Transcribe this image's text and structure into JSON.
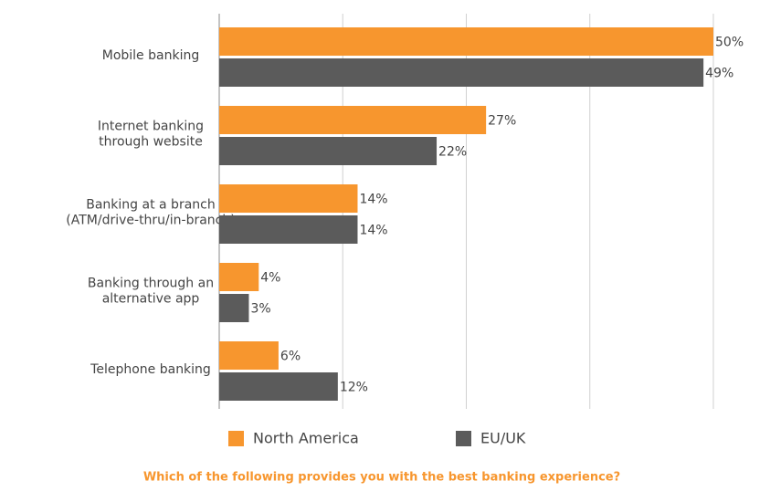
{
  "chart_data": {
    "type": "bar",
    "orientation": "horizontal",
    "title": "Which of the following provides you with the best banking experience?",
    "categories": [
      "Mobile banking",
      "Internet banking\nthrough website",
      "Banking at a branch\n(ATM/drive-thru/in-branch)",
      "Banking through an\nalternative app",
      "Telephone banking"
    ],
    "series": [
      {
        "name": "North America",
        "color": "#f7962e",
        "values": [
          50,
          27,
          14,
          4,
          6
        ],
        "value_labels": [
          "50%",
          "27%",
          "14%",
          "4%",
          "6%"
        ]
      },
      {
        "name": "EU/UK",
        "color": "#5b5b5b",
        "values": [
          49,
          22,
          14,
          3,
          12
        ],
        "value_labels": [
          "49%",
          "22%",
          "14%",
          "3%",
          "12%"
        ]
      }
    ],
    "xlim": [
      0,
      50
    ],
    "xgrid": [
      0,
      12.5,
      25,
      37.5,
      50
    ],
    "grid": true,
    "legend": "bottom"
  }
}
